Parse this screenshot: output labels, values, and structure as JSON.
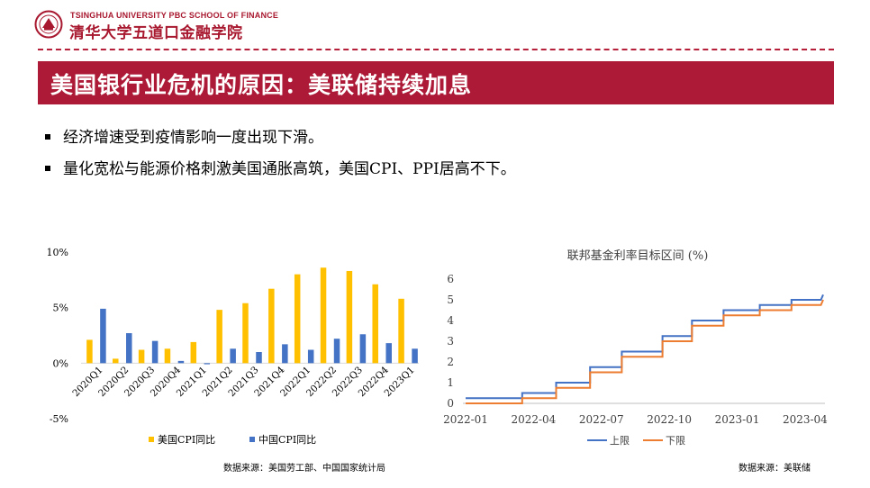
{
  "header": {
    "logo_en": "TSINGHUA UNIVERSITY PBC SCHOOL OF FINANCE",
    "logo_cn": "清华大学五道口金融学院",
    "brand_color": "#ad1a37"
  },
  "title": "美国银行业危机的原因：美联储持续加息",
  "bullets": [
    "经济增速受到疫情影响一度出现下滑。",
    "量化宽松与能源价格刺激美国通胀高筑，美国CPI、PPI居高不下。"
  ],
  "chart_data": [
    {
      "type": "bar",
      "title": "",
      "categories": [
        "2020Q1",
        "2020Q2",
        "2020Q3",
        "2020Q4",
        "2021Q1",
        "2021Q2",
        "2021Q3",
        "2021Q4",
        "2022Q1",
        "2022Q2",
        "2022Q3",
        "2022Q4",
        "2023Q1"
      ],
      "series": [
        {
          "name": "美国CPI同比",
          "color": "#ffc000",
          "values": [
            2.1,
            0.4,
            1.2,
            1.3,
            1.9,
            4.8,
            5.4,
            6.7,
            8.0,
            8.6,
            8.3,
            7.1,
            5.8
          ]
        },
        {
          "name": "中国CPI同比",
          "color": "#4472c4",
          "values": [
            4.9,
            2.7,
            2.0,
            0.2,
            -0.1,
            1.3,
            1.0,
            1.7,
            1.2,
            2.2,
            2.6,
            1.8,
            1.3
          ]
        }
      ],
      "ylim": [
        -5,
        10
      ],
      "yticks": [
        "10%",
        "5%",
        "0%",
        "-5%"
      ],
      "ytick_values": [
        10,
        5,
        0,
        -5
      ],
      "legend": "bottom"
    },
    {
      "type": "line",
      "title": "联邦基金利率目标区间 (%)",
      "x_ticks": [
        "2022-01",
        "2022-04",
        "2022-07",
        "2022-10",
        "2023-01",
        "2023-04"
      ],
      "y_ticks": [
        "0",
        "1",
        "2",
        "3",
        "4",
        "5",
        "6"
      ],
      "xlim": [
        0,
        15.8
      ],
      "ylim": [
        0,
        6
      ],
      "series": [
        {
          "name": "上限",
          "color": "#4472c4",
          "points": [
            [
              0,
              0.25
            ],
            [
              2.5,
              0.25
            ],
            [
              2.5,
              0.5
            ],
            [
              4,
              0.5
            ],
            [
              4,
              1.0
            ],
            [
              5.5,
              1.0
            ],
            [
              5.5,
              1.75
            ],
            [
              6.9,
              1.75
            ],
            [
              6.9,
              2.5
            ],
            [
              8.7,
              2.5
            ],
            [
              8.7,
              3.25
            ],
            [
              10,
              3.25
            ],
            [
              10,
              4.0
            ],
            [
              11.4,
              4.0
            ],
            [
              11.4,
              4.5
            ],
            [
              13,
              4.5
            ],
            [
              13,
              4.75
            ],
            [
              14.4,
              4.75
            ],
            [
              14.4,
              5.0
            ],
            [
              15.7,
              5.0
            ],
            [
              15.8,
              5.25
            ]
          ]
        },
        {
          "name": "下限",
          "color": "#ed7d31",
          "points": [
            [
              0,
              0
            ],
            [
              2.5,
              0
            ],
            [
              2.5,
              0.25
            ],
            [
              4,
              0.25
            ],
            [
              4,
              0.75
            ],
            [
              5.5,
              0.75
            ],
            [
              5.5,
              1.5
            ],
            [
              6.9,
              1.5
            ],
            [
              6.9,
              2.25
            ],
            [
              8.7,
              2.25
            ],
            [
              8.7,
              3.0
            ],
            [
              10,
              3.0
            ],
            [
              10,
              3.75
            ],
            [
              11.4,
              3.75
            ],
            [
              11.4,
              4.25
            ],
            [
              13,
              4.25
            ],
            [
              13,
              4.5
            ],
            [
              14.4,
              4.5
            ],
            [
              14.4,
              4.75
            ],
            [
              15.7,
              4.75
            ],
            [
              15.8,
              5.0
            ]
          ]
        }
      ],
      "legend": "bottom"
    }
  ],
  "footnotes": {
    "left": "数据来源：美国劳工部、中国国家统计局",
    "right": "数据来源：美联储"
  }
}
